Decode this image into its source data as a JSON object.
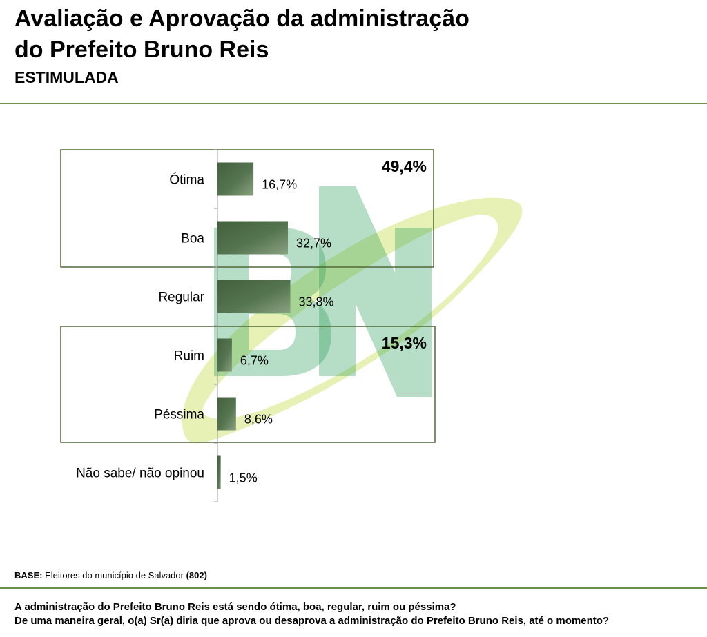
{
  "header": {
    "title_line1": "Avaliação e Aprovação da administração",
    "title_line2": "do Prefeito Bruno Reis",
    "subtitle": "ESTIMULADA"
  },
  "chart_data": {
    "type": "bar",
    "orientation": "horizontal",
    "categories": [
      "Ótima",
      "Boa",
      "Regular",
      "Ruim",
      "Péssima",
      "Não sabe/ não opinou"
    ],
    "values": [
      16.7,
      32.7,
      33.8,
      6.7,
      8.6,
      1.5
    ],
    "value_labels": [
      "16,7%",
      "32,7%",
      "33,8%",
      "6,7%",
      "8,6%",
      "1,5%"
    ],
    "unit": "%",
    "bar_color": "#4e6b45",
    "groups": [
      {
        "categories": [
          "Ótima",
          "Boa"
        ],
        "total": 49.4,
        "total_label": "49,4%"
      },
      {
        "categories": [
          "Ruim",
          "Péssima"
        ],
        "total": 15.3,
        "total_label": "15,3%"
      }
    ],
    "grid": false
  },
  "footer": {
    "base_label": "BASE:",
    "base_text": "Eleitores do município de Salvador",
    "base_count": "(802)",
    "question_line1": "A administração do Prefeito Bruno Reis está sendo ótima, boa, regular, ruim ou péssima?",
    "question_line2": "De uma maneira geral, o(a) Sr(a) diria que aprova ou desaprova a administração do Prefeito Bruno Reis, até o momento?"
  },
  "colors": {
    "accent_rule": "#6f8f4a",
    "group_box": "#4f6a35",
    "watermark_green": "#2e9e58",
    "watermark_yellow": "#d4e57a"
  }
}
